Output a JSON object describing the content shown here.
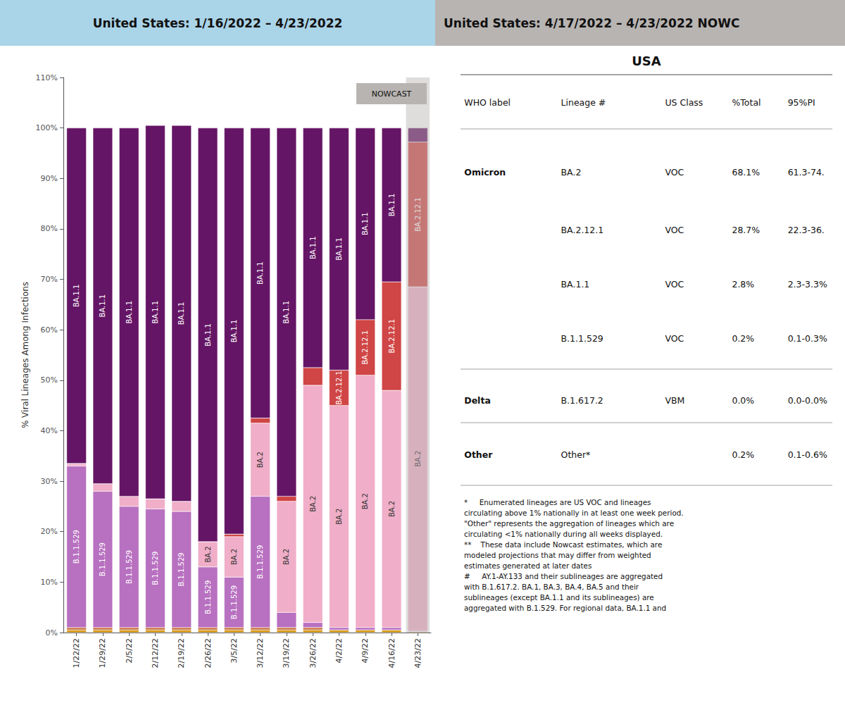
{
  "chart_data": {
    "type": "bar",
    "stacked": true,
    "title": "United States: 1/16/2022 – 4/23/2022",
    "subtitle": "United States: 4/17/2022 – 4/23/2022 NOWC",
    "ylabel": "% Viral Lineages Among Infections",
    "categories": [
      "1/22/22",
      "1/29/22",
      "2/5/22",
      "2/12/22",
      "2/19/22",
      "2/26/22",
      "3/5/22",
      "3/12/22",
      "3/19/22",
      "3/26/22",
      "4/2/22",
      "4/9/22",
      "4/16/22",
      "4/23/22"
    ],
    "series": [
      {
        "name": "Other",
        "color": "#d4920a",
        "values": [
          0.5,
          0.5,
          0.5,
          0.5,
          0.5,
          0.5,
          0.5,
          0.5,
          0.5,
          0.5,
          0.5,
          0.5,
          0.5,
          0.2
        ]
      },
      {
        "name": "B.1.617.2",
        "color": "#cc7744",
        "values": [
          0.5,
          0.5,
          0.5,
          0.5,
          0.5,
          0.5,
          0.5,
          0.5,
          0.5,
          0.5,
          0.0,
          0.0,
          0.0,
          0.0
        ]
      },
      {
        "name": "B.1.1.529",
        "color": "#b870c0",
        "values": [
          32.0,
          27.0,
          24.0,
          23.5,
          23.0,
          12.0,
          10.0,
          26.0,
          3.0,
          1.0,
          0.5,
          0.5,
          0.5,
          0.2
        ]
      },
      {
        "name": "BA.2",
        "color": "#f0aec8",
        "values": [
          0.5,
          1.5,
          2.0,
          2.0,
          2.0,
          5.0,
          8.0,
          14.5,
          22.0,
          47.0,
          44.0,
          50.0,
          47.0,
          68.1
        ]
      },
      {
        "name": "BA.2.12.1",
        "color": "#d04545",
        "values": [
          0.0,
          0.0,
          0.0,
          0.0,
          0.0,
          0.0,
          0.5,
          1.0,
          1.0,
          3.5,
          7.0,
          11.0,
          21.5,
          28.7
        ]
      },
      {
        "name": "BA.1.1",
        "color": "#651565",
        "values": [
          66.5,
          70.5,
          73.0,
          74.0,
          74.5,
          82.0,
          80.5,
          57.5,
          73.0,
          47.5,
          48.0,
          38.0,
          30.5,
          2.8
        ]
      }
    ],
    "ylim": [
      0,
      110
    ],
    "yticks": [
      {
        "value": 0,
        "label": "0%"
      },
      {
        "value": 10,
        "label": "10%"
      },
      {
        "value": 20,
        "label": "20%"
      },
      {
        "value": 30,
        "label": "30%"
      },
      {
        "value": 40,
        "label": "40%"
      },
      {
        "value": 50,
        "label": "50%"
      },
      {
        "value": 60,
        "label": "60%"
      },
      {
        "value": 70,
        "label": "70%"
      },
      {
        "value": 80,
        "label": "80%"
      },
      {
        "value": 90,
        "label": "90%"
      },
      {
        "value": 100,
        "label": "100%"
      },
      {
        "value": 110,
        "label": "110%"
      }
    ],
    "grid": false,
    "annotations": [
      "NOWCAST"
    ],
    "table": {
      "title": "USA",
      "headers": [
        "WHO label",
        "Lineage #",
        "US Class",
        "%Total",
        "95%PI"
      ],
      "rows": [
        [
          "Omicron",
          "BA.2",
          "VOC",
          "68.1%",
          "61.3-74."
        ],
        [
          null,
          "BA.2.12.1",
          "VOC",
          "28.7%",
          "22.3-36."
        ],
        [
          null,
          "BA.1.1",
          "VOC",
          "2.8%",
          "2.3-3.3%"
        ],
        [
          null,
          "B.1.1.529",
          "VOC",
          "0.2%",
          "0.1-0.3%"
        ],
        [
          "Delta",
          "B.1.617.2",
          "VBM",
          "0.0%",
          "0.0-0.0%"
        ],
        [
          "Other",
          "Other*",
          null,
          "0.2%",
          "0.1-0.6%"
        ]
      ]
    },
    "footnote": [
      "*     Enumerated lineages are US VOC and lineages",
      "circulating above 1% nationally in at least one week period.",
      "\"Other\" represents the aggregation of lineages which are",
      "circulating <1% nationally during all weeks displayed.",
      "**    These data include Nowcast estimates, which are",
      "modeled projections that may differ from weighted",
      "estimates generated at later dates",
      "#     AY.1-AY.133 and their sublineages are aggregated",
      "with B.1.617.2. BA.1, BA.3, BA.4, BA.5 and their",
      "sublineages (except BA.1.1 and its sublineages) are",
      "aggregated with B.1.529. For regional data, BA.1.1 and"
    ]
  }
}
